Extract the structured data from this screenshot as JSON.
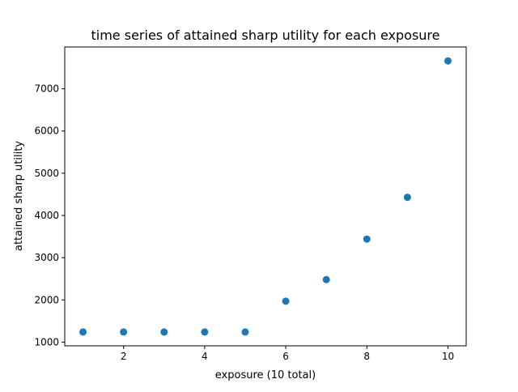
{
  "chart_data": {
    "type": "scatter",
    "title": "time series of attained sharp utility for each exposure",
    "xlabel": "exposure (10 total)",
    "ylabel": "attained sharp utility",
    "x": [
      1,
      2,
      3,
      4,
      5,
      6,
      7,
      8,
      9,
      10
    ],
    "y": [
      1240,
      1240,
      1240,
      1240,
      1240,
      1970,
      2480,
      3440,
      4430,
      7660
    ],
    "xlim": [
      0.55,
      10.45
    ],
    "ylim": [
      912,
      7990
    ],
    "xticks": [
      2,
      4,
      6,
      8,
      10
    ],
    "yticks": [
      1000,
      2000,
      3000,
      4000,
      5000,
      6000,
      7000
    ],
    "grid": false,
    "marker_color": "#1f77b4"
  }
}
